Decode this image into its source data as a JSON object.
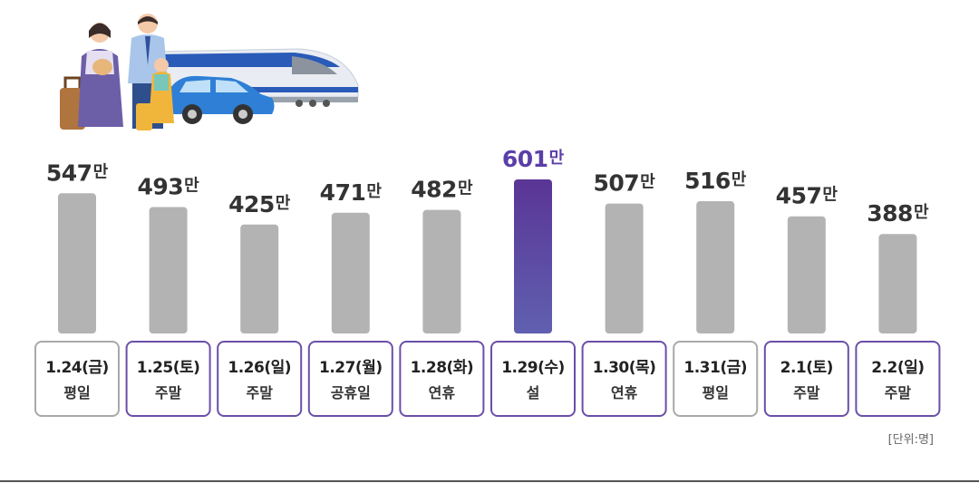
{
  "chart_data": {
    "type": "bar",
    "title": "",
    "unit_note": "[단위:명]",
    "value_suffix": "만",
    "highlight_index": 5,
    "colors": {
      "bar": "#b3b3b3",
      "highlight_top": "#5a3596",
      "highlight_bottom": "#6060b0",
      "box_border_weekday": "#a9a9a9",
      "box_border_holiday": "#6a4fa8",
      "highlight_label": "#5b3fa8"
    },
    "ylim": [
      0,
      650
    ],
    "categories": [
      {
        "date": "1.24(금)",
        "day_type": "평일",
        "holiday": false
      },
      {
        "date": "1.25(토)",
        "day_type": "주말",
        "holiday": true
      },
      {
        "date": "1.26(일)",
        "day_type": "주말",
        "holiday": true
      },
      {
        "date": "1.27(월)",
        "day_type": "공휴일",
        "holiday": true
      },
      {
        "date": "1.28(화)",
        "day_type": "연휴",
        "holiday": true
      },
      {
        "date": "1.29(수)",
        "day_type": "설",
        "holiday": true
      },
      {
        "date": "1.30(목)",
        "day_type": "연휴",
        "holiday": true
      },
      {
        "date": "1.31(금)",
        "day_type": "평일",
        "holiday": false
      },
      {
        "date": "2.1(토)",
        "day_type": "주말",
        "holiday": true
      },
      {
        "date": "2.2(일)",
        "day_type": "주말",
        "holiday": true
      }
    ],
    "values": [
      547,
      493,
      425,
      471,
      482,
      601,
      507,
      516,
      457,
      388
    ]
  }
}
